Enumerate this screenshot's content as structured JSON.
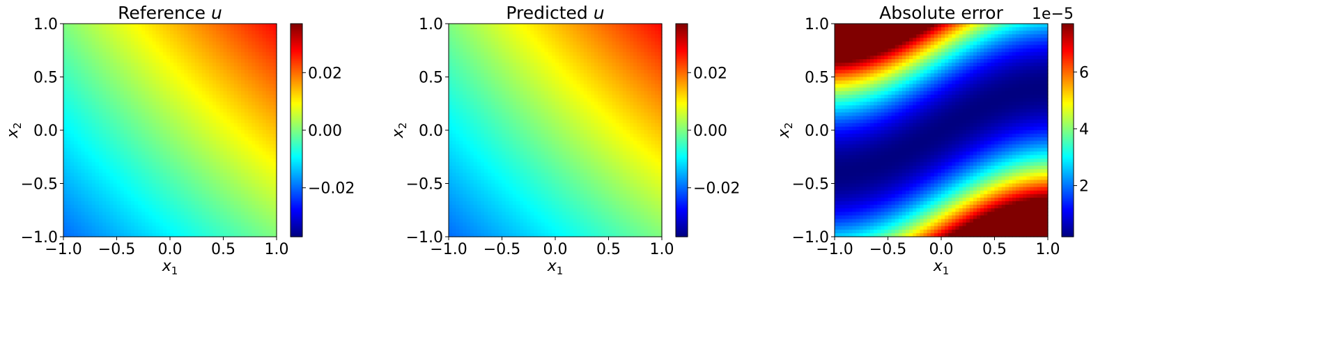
{
  "chart_data": [
    {
      "type": "heatmap",
      "title_prefix": "Reference ",
      "title_var": "u",
      "xlabel": "x",
      "xlabel_sub": "1",
      "ylabel": "x",
      "ylabel_sub": "2",
      "xlim": [
        -1.0,
        1.0
      ],
      "ylim": [
        -1.0,
        1.0
      ],
      "xticks": [
        "−1.0",
        "−0.5",
        "0.0",
        "0.5",
        "1.0"
      ],
      "yticks": [
        "−1.0",
        "−0.5",
        "0.0",
        "0.5",
        "1.0"
      ],
      "field": "0.01*(x1+x2) + 0.0075*(x1+1)*(x2+1)/4",
      "colormap": "jet",
      "vmin": -0.037,
      "vmax": 0.037,
      "colorbar_ticks": [
        -0.02,
        0.0,
        0.02
      ],
      "colorbar_tick_labels": [
        "−0.02",
        "0.00",
        "0.02"
      ],
      "colorbar_offset": ""
    },
    {
      "type": "heatmap",
      "title_prefix": "Predicted ",
      "title_var": "u",
      "xlabel": "x",
      "xlabel_sub": "1",
      "ylabel": "x",
      "ylabel_sub": "2",
      "xlim": [
        -1.0,
        1.0
      ],
      "ylim": [
        -1.0,
        1.0
      ],
      "xticks": [
        "−1.0",
        "−0.5",
        "0.0",
        "0.5",
        "1.0"
      ],
      "yticks": [
        "−1.0",
        "−0.5",
        "0.0",
        "0.5",
        "1.0"
      ],
      "field": "0.01*(x1+x2) + 0.0075*(x1+1)*(x2+1)/4",
      "colormap": "jet",
      "vmin": -0.037,
      "vmax": 0.037,
      "colorbar_ticks": [
        -0.02,
        0.0,
        0.02
      ],
      "colorbar_tick_labels": [
        "−0.02",
        "0.00",
        "0.02"
      ],
      "colorbar_offset": ""
    },
    {
      "type": "heatmap",
      "title_prefix": "Absolute error",
      "title_var": "",
      "xlabel": "x",
      "xlabel_sub": "1",
      "ylabel": "x",
      "ylabel_sub": "2",
      "xlim": [
        -1.0,
        1.0
      ],
      "ylim": [
        -1.0,
        1.0
      ],
      "xticks": [
        "−1.0",
        "−0.5",
        "0.0",
        "0.5",
        "1.0"
      ],
      "yticks": [
        "−1.0",
        "−0.5",
        "0.0",
        "0.5",
        "1.0"
      ],
      "field": "7.5e-5*((x2 - 0.3*sin(pi*x1/2)*... )^2 normalized)",
      "colormap": "jet",
      "vmin": 2e-06,
      "vmax": 7.7e-05,
      "colorbar_ticks": [
        2,
        4,
        6
      ],
      "colorbar_tick_labels": [
        "2",
        "4",
        "6"
      ],
      "colorbar_offset": "1e−5"
    }
  ]
}
